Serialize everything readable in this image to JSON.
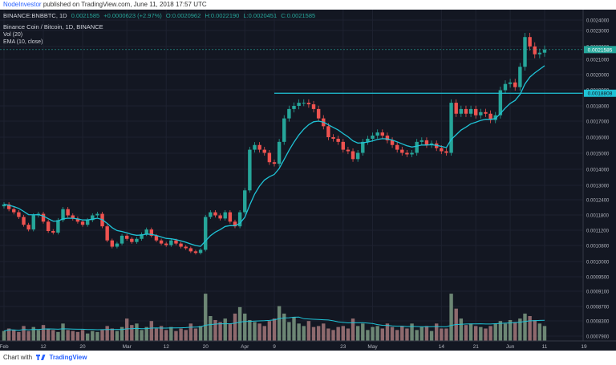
{
  "header": {
    "author": "NodeInvestor",
    "published_text": "published on TradingView.com, June 11, 2018 17:57 UTC"
  },
  "footer": {
    "prefix": "Chart with",
    "brand": "TradingView"
  },
  "colors": {
    "background": "#131722",
    "up": "#26a69a",
    "down": "#ef5350",
    "ema": "#1fc3d6",
    "vol_ma": "#1fc3d6",
    "resistance": "#1fc3d6",
    "text": "#d1d4dc"
  },
  "chart_data": {
    "type": "candlestick",
    "symbol_line": "BINANCE:BNBBTC, 1D",
    "ohlc_line": {
      "close": "0.0021585",
      "change": "+0.0000623 (+2.97%)",
      "open": "O:0.0020962",
      "high": "H:0.0022190",
      "low": "L:0.0020451",
      "close_label": "C:0.0021585"
    },
    "title": "Binance Coin / Bitcoin, 1D, BINANCE",
    "indicators": [
      "Vol (20)",
      "EMA (10, close)"
    ],
    "y_ticks": [
      "0.0024000",
      "0.0023000",
      "0.0022000",
      "0.0021000",
      "0.0020000",
      "0.0019000",
      "0.0018000",
      "0.0017000",
      "0.0016000",
      "0.0015000",
      "0.0014000",
      "0.0013000",
      "0.0012400",
      "0.0011800",
      "0.0011200",
      "0.0010800",
      "0.0010000",
      "0.0009500",
      "0.0009100",
      "0.0008700",
      "0.0008300",
      "0.0007900"
    ],
    "x_ticks": [
      "Feb",
      "12",
      "20",
      "Mar",
      "12",
      "20",
      "Apr",
      "9",
      "23",
      "May",
      "14",
      "21",
      "Jun",
      "11",
      "19"
    ],
    "price_label": "0.0021585",
    "level_label": "0.0018808",
    "resistance_level": 0.0018808,
    "closes": [
      0.00117,
      0.00114,
      0.00112,
      0.00109,
      0.00104,
      0.00101,
      0.0011,
      0.00111,
      0.00106,
      0.001,
      0.00099,
      0.00107,
      0.00114,
      0.0011,
      0.00108,
      0.00106,
      0.00104,
      0.00107,
      0.0011,
      0.00111,
      0.00103,
      0.00094,
      0.0009,
      0.00092,
      0.00097,
      0.00095,
      0.00093,
      0.00095,
      0.00098,
      0.00101,
      0.00097,
      0.00094,
      0.00092,
      0.00091,
      0.00094,
      0.00092,
      0.0009,
      0.00089,
      0.00087,
      0.00086,
      0.00088,
      0.00109,
      0.00112,
      0.0011,
      0.00108,
      0.00112,
      0.00106,
      0.00103,
      0.00112,
      0.00126,
      0.00152,
      0.00155,
      0.00152,
      0.0015,
      0.00144,
      0.00143,
      0.00157,
      0.00172,
      0.00178,
      0.0018,
      0.00182,
      0.00182,
      0.00181,
      0.00178,
      0.00172,
      0.00167,
      0.0016,
      0.00159,
      0.00157,
      0.00152,
      0.00151,
      0.00146,
      0.0015,
      0.00157,
      0.00159,
      0.00161,
      0.00163,
      0.00161,
      0.00158,
      0.00155,
      0.00152,
      0.0015,
      0.00149,
      0.0015,
      0.00157,
      0.00158,
      0.00155,
      0.00156,
      0.00153,
      0.00151,
      0.0015,
      0.00182,
      0.00175,
      0.00178,
      0.00175,
      0.00178,
      0.00174,
      0.00176,
      0.00175,
      0.00171,
      0.00174,
      0.0019,
      0.00194,
      0.00195,
      0.00192,
      0.00205,
      0.00224,
      0.00218,
      0.00213,
      0.00214,
      0.00216
    ],
    "volumes": [
      0.2,
      0.25,
      0.22,
      0.18,
      0.3,
      0.2,
      0.28,
      0.22,
      0.32,
      0.25,
      0.22,
      0.18,
      0.35,
      0.22,
      0.2,
      0.18,
      0.22,
      0.15,
      0.2,
      0.18,
      0.22,
      0.3,
      0.25,
      0.2,
      0.28,
      0.45,
      0.32,
      0.35,
      0.22,
      0.28,
      0.4,
      0.25,
      0.3,
      0.22,
      0.28,
      0.2,
      0.25,
      0.22,
      0.35,
      0.25,
      0.3,
      0.95,
      0.5,
      0.42,
      0.38,
      0.45,
      0.35,
      0.55,
      0.68,
      0.55,
      0.42,
      0.38,
      0.35,
      0.3,
      0.4,
      0.45,
      0.7,
      0.55,
      0.38,
      0.48,
      0.35,
      0.3,
      0.4,
      0.28,
      0.3,
      0.35,
      0.25,
      0.22,
      0.28,
      0.3,
      0.25,
      0.45,
      0.3,
      0.35,
      0.22,
      0.28,
      0.3,
      0.25,
      0.35,
      0.28,
      0.22,
      0.3,
      0.25,
      0.35,
      0.22,
      0.28,
      0.3,
      0.2,
      0.35,
      0.25,
      0.25,
      0.95,
      0.65,
      0.45,
      0.32,
      0.35,
      0.3,
      0.28,
      0.25,
      0.3,
      0.35,
      0.4,
      0.35,
      0.42,
      0.38,
      0.45,
      0.55,
      0.5,
      0.42,
      0.35,
      0.3
    ]
  }
}
